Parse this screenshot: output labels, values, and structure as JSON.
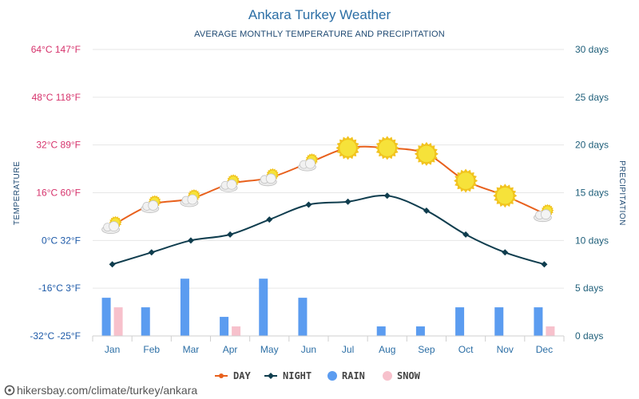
{
  "title": "Ankara Turkey Weather",
  "subtitle": "AVERAGE MONTHLY TEMPERATURE AND PRECIPITATION",
  "watermark": "hikersbay.com/climate/turkey/ankara",
  "colors": {
    "day": "#e8601c",
    "night": "#0f3d4e",
    "rain": "#5b9cf0",
    "snow": "#f7c1cc",
    "left_axis": "#d6336c",
    "left_axis_low": "#1e5aa8",
    "grid": "#e6e6e6",
    "sun": "#f6e23a"
  },
  "chart_data": {
    "type": "line",
    "title": "Ankara Turkey Weather",
    "subtitle": "AVERAGE MONTHLY TEMPERATURE AND PRECIPITATION",
    "categories": [
      "Jan",
      "Feb",
      "Mar",
      "Apr",
      "May",
      "Jun",
      "Jul",
      "Aug",
      "Sep",
      "Oct",
      "Nov",
      "Dec"
    ],
    "temperature_axis": {
      "label": "TEMPERATURE",
      "unit": "°C",
      "ylim": [
        -32,
        64
      ],
      "ticks": [
        {
          "value": 64,
          "label": "64°C 147°F"
        },
        {
          "value": 48,
          "label": "48°C 118°F"
        },
        {
          "value": 32,
          "label": "32°C 89°F"
        },
        {
          "value": 16,
          "label": "16°C 60°F"
        },
        {
          "value": 0,
          "label": "0°C 32°F"
        },
        {
          "value": -16,
          "label": "-16°C 3°F"
        },
        {
          "value": -32,
          "label": "-32°C -25°F"
        }
      ]
    },
    "precipitation_axis": {
      "label": "PRECIPITATION",
      "unit": "days",
      "ylim": [
        0,
        30
      ],
      "ticks": [
        {
          "value": 30,
          "label": "30 days"
        },
        {
          "value": 25,
          "label": "25 days"
        },
        {
          "value": 20,
          "label": "20 days"
        },
        {
          "value": 15,
          "label": "15 days"
        },
        {
          "value": 10,
          "label": "10 days"
        },
        {
          "value": 5,
          "label": "5 days"
        },
        {
          "value": 0,
          "label": "0 days"
        }
      ]
    },
    "series": [
      {
        "name": "DAY",
        "kind": "line",
        "axis": "temperature",
        "values": [
          5,
          12,
          14,
          19,
          21,
          26,
          31,
          31,
          29,
          20,
          15,
          9
        ],
        "icons": [
          "partly-cloudy",
          "partly-cloudy",
          "partly-cloudy",
          "partly-cloudy",
          "partly-cloudy",
          "partly-cloudy",
          "sunny",
          "sunny",
          "sunny",
          "sunny",
          "sunny",
          "partly-cloudy"
        ]
      },
      {
        "name": "NIGHT",
        "kind": "line",
        "axis": "temperature",
        "values": [
          -8,
          -4,
          0,
          2,
          7,
          12,
          13,
          15,
          10,
          2,
          -4,
          -8
        ]
      },
      {
        "name": "RAIN",
        "kind": "bar",
        "axis": "precipitation",
        "values": [
          4,
          3,
          6,
          2,
          6,
          4,
          0,
          1,
          1,
          3,
          3,
          3
        ]
      },
      {
        "name": "SNOW",
        "kind": "bar",
        "axis": "precipitation",
        "values": [
          3,
          0,
          0,
          1,
          0,
          0,
          0,
          0,
          0,
          0,
          0,
          1
        ]
      }
    ],
    "legend": [
      {
        "key": "day",
        "label": "DAY",
        "marker": "line-circle"
      },
      {
        "key": "night",
        "label": "NIGHT",
        "marker": "line-diamond"
      },
      {
        "key": "rain",
        "label": "RAIN",
        "marker": "circle"
      },
      {
        "key": "snow",
        "label": "SNOW",
        "marker": "circle"
      }
    ],
    "legend_position": "bottom-center"
  }
}
